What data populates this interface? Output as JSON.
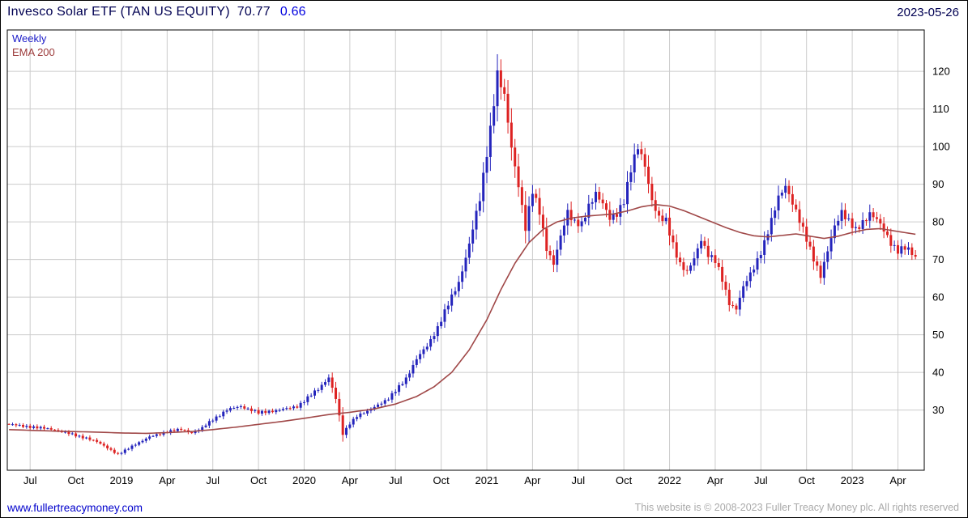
{
  "header": {
    "instrument": "Invesco Solar ETF (TAN US EQUITY)",
    "last_price": "70.77",
    "change": "0.66",
    "date": "2023-05-26"
  },
  "legend": {
    "series": [
      {
        "label": "Weekly"
      },
      {
        "label": "EMA 200"
      }
    ]
  },
  "footer": {
    "site_link": "www.fullertreacymoney.com",
    "copyright": "This website is © 2008-2023 Fuller Treacy Money plc. All rights reserved"
  },
  "colors": {
    "title_text": "#000052",
    "price_text": "#000052",
    "change_text": "#0000e0",
    "date_text": "#000052",
    "weekly_label": "#1a1ac8",
    "ema_label": "#9c3a3a",
    "up_candle": "#2424bc",
    "down_candle": "#dd2222",
    "ema_line": "#a04848",
    "grid": "#cccccc",
    "axis_text": "#000000",
    "plot_border": "#000000",
    "link": "#0000cc",
    "copyright": "#aaaaaa"
  },
  "chart_data": {
    "type": "candlestick",
    "title": "Invesco Solar ETF (TAN US EQUITY)",
    "timeframe": "Weekly",
    "overlay": "EMA 200",
    "last_close": 70.77,
    "change": 0.66,
    "as_of_date": "2023-05-26",
    "grid": true,
    "y_axis_side": "right",
    "ylim": [
      14,
      131
    ],
    "yticks": [
      30,
      40,
      50,
      60,
      70,
      80,
      90,
      100,
      110,
      120
    ],
    "n_weeks": 259,
    "weeks_span": 261,
    "x_ticks": [
      {
        "label": "Jul",
        "week": 6
      },
      {
        "label": "Oct",
        "week": 19
      },
      {
        "label": "2019",
        "week": 32
      },
      {
        "label": "Apr",
        "week": 45
      },
      {
        "label": "Jul",
        "week": 58
      },
      {
        "label": "Oct",
        "week": 71
      },
      {
        "label": "2020",
        "week": 84
      },
      {
        "label": "Apr",
        "week": 97
      },
      {
        "label": "Jul",
        "week": 110
      },
      {
        "label": "Oct",
        "week": 123
      },
      {
        "label": "2021",
        "week": 136
      },
      {
        "label": "Apr",
        "week": 149
      },
      {
        "label": "Jul",
        "week": 162
      },
      {
        "label": "Oct",
        "week": 175
      },
      {
        "label": "2022",
        "week": 188
      },
      {
        "label": "Apr",
        "week": 201
      },
      {
        "label": "Jul",
        "week": 214
      },
      {
        "label": "Oct",
        "week": 227
      },
      {
        "label": "2023",
        "week": 240
      },
      {
        "label": "Apr",
        "week": 253
      }
    ],
    "price_anchors": [
      [
        0,
        26.2
      ],
      [
        3,
        25.8
      ],
      [
        6,
        25.6
      ],
      [
        9,
        25.2
      ],
      [
        13,
        24.8
      ],
      [
        16,
        24.0
      ],
      [
        19,
        23.2
      ],
      [
        22,
        22.6
      ],
      [
        25,
        21.5
      ],
      [
        28,
        20.0
      ],
      [
        31,
        18.2
      ],
      [
        33,
        19.2
      ],
      [
        36,
        21.0
      ],
      [
        40,
        22.8
      ],
      [
        45,
        24.3
      ],
      [
        49,
        24.8
      ],
      [
        52,
        24.0
      ],
      [
        55,
        25.2
      ],
      [
        58,
        27.5
      ],
      [
        62,
        30.0
      ],
      [
        66,
        31.0
      ],
      [
        69,
        30.0
      ],
      [
        71,
        29.2
      ],
      [
        75,
        29.8
      ],
      [
        79,
        30.3
      ],
      [
        82,
        31.0
      ],
      [
        84,
        32.5
      ],
      [
        88,
        35.5
      ],
      [
        91,
        38.8
      ],
      [
        93,
        33.0
      ],
      [
        95,
        23.5
      ],
      [
        97,
        26.5
      ],
      [
        99,
        28.5
      ],
      [
        102,
        29.5
      ],
      [
        105,
        31.5
      ],
      [
        108,
        33.0
      ],
      [
        110,
        35.0
      ],
      [
        113,
        38.5
      ],
      [
        116,
        43.5
      ],
      [
        119,
        47.0
      ],
      [
        122,
        52.0
      ],
      [
        125,
        58.0
      ],
      [
        128,
        64.0
      ],
      [
        131,
        74.0
      ],
      [
        134,
        86.0
      ],
      [
        137,
        105.0
      ],
      [
        139,
        119.0
      ],
      [
        141,
        113.0
      ],
      [
        143,
        100.0
      ],
      [
        145,
        90.0
      ],
      [
        147,
        78.0
      ],
      [
        149,
        88.0
      ],
      [
        151,
        83.0
      ],
      [
        153,
        73.0
      ],
      [
        155,
        68.5
      ],
      [
        157,
        76.0
      ],
      [
        159,
        83.0
      ],
      [
        161,
        80.0
      ],
      [
        163,
        79.0
      ],
      [
        165,
        84.0
      ],
      [
        167,
        88.0
      ],
      [
        169,
        85.0
      ],
      [
        171,
        80.5
      ],
      [
        173,
        82.0
      ],
      [
        175,
        86.0
      ],
      [
        177,
        94.0
      ],
      [
        179,
        99.5
      ],
      [
        181,
        95.0
      ],
      [
        183,
        86.0
      ],
      [
        185,
        81.0
      ],
      [
        187,
        80.0
      ],
      [
        189,
        74.0
      ],
      [
        191,
        69.0
      ],
      [
        193,
        66.5
      ],
      [
        195,
        70.0
      ],
      [
        197,
        75.5
      ],
      [
        199,
        71.5
      ],
      [
        201,
        69.5
      ],
      [
        203,
        64.5
      ],
      [
        205,
        58.5
      ],
      [
        207,
        57.0
      ],
      [
        209,
        62.5
      ],
      [
        211,
        66.0
      ],
      [
        213,
        70.0
      ],
      [
        215,
        74.5
      ],
      [
        217,
        80.0
      ],
      [
        219,
        86.5
      ],
      [
        221,
        90.0
      ],
      [
        223,
        85.0
      ],
      [
        225,
        80.0
      ],
      [
        227,
        75.5
      ],
      [
        229,
        70.5
      ],
      [
        231,
        65.5
      ],
      [
        233,
        72.0
      ],
      [
        235,
        79.0
      ],
      [
        237,
        83.0
      ],
      [
        239,
        80.0
      ],
      [
        241,
        77.5
      ],
      [
        243,
        80.0
      ],
      [
        245,
        82.5
      ],
      [
        247,
        80.5
      ],
      [
        249,
        77.5
      ],
      [
        251,
        74.5
      ],
      [
        253,
        72.5
      ],
      [
        255,
        73.0
      ],
      [
        257,
        71.5
      ],
      [
        258,
        70.8
      ]
    ],
    "ema_anchors": [
      [
        0,
        24.8
      ],
      [
        13,
        24.4
      ],
      [
        26,
        24.1
      ],
      [
        32,
        23.9
      ],
      [
        39,
        23.8
      ],
      [
        45,
        24.0
      ],
      [
        52,
        24.3
      ],
      [
        58,
        24.8
      ],
      [
        65,
        25.5
      ],
      [
        71,
        26.2
      ],
      [
        78,
        27.0
      ],
      [
        84,
        27.8
      ],
      [
        91,
        28.8
      ],
      [
        97,
        29.4
      ],
      [
        104,
        30.3
      ],
      [
        110,
        31.6
      ],
      [
        116,
        33.6
      ],
      [
        121,
        36.2
      ],
      [
        126,
        40.0
      ],
      [
        131,
        46.0
      ],
      [
        136,
        54.0
      ],
      [
        140,
        62.0
      ],
      [
        144,
        69.0
      ],
      [
        148,
        74.5
      ],
      [
        152,
        78.0
      ],
      [
        156,
        80.0
      ],
      [
        160,
        81.0
      ],
      [
        164,
        81.5
      ],
      [
        168,
        81.8
      ],
      [
        172,
        82.1
      ],
      [
        176,
        82.9
      ],
      [
        180,
        84.0
      ],
      [
        184,
        84.6
      ],
      [
        188,
        84.2
      ],
      [
        192,
        83.0
      ],
      [
        196,
        81.5
      ],
      [
        200,
        80.0
      ],
      [
        204,
        78.5
      ],
      [
        208,
        77.2
      ],
      [
        212,
        76.3
      ],
      [
        216,
        76.0
      ],
      [
        220,
        76.4
      ],
      [
        224,
        76.8
      ],
      [
        228,
        76.2
      ],
      [
        232,
        75.6
      ],
      [
        236,
        76.2
      ],
      [
        240,
        77.2
      ],
      [
        244,
        78.0
      ],
      [
        248,
        78.2
      ],
      [
        252,
        77.6
      ],
      [
        256,
        77.0
      ],
      [
        258,
        76.7
      ]
    ]
  }
}
